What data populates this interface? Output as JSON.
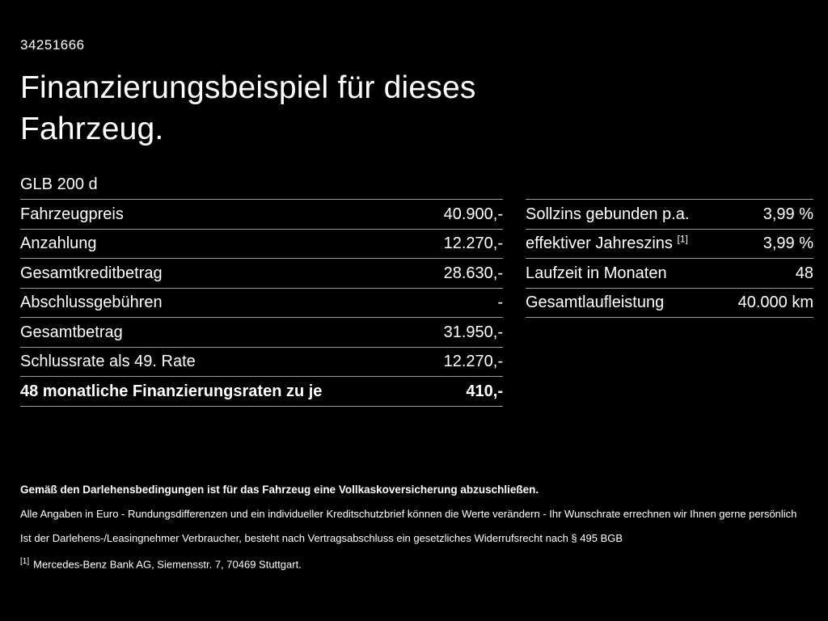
{
  "page": {
    "id_number": "34251666",
    "title": "Finanzierungsbeispiel für dieses Fahrzeug.",
    "model": "GLB 200 d"
  },
  "left_table": {
    "rows": [
      {
        "label": "Fahrzeugpreis",
        "value": "40.900,-"
      },
      {
        "label": "Anzahlung",
        "value": "12.270,-"
      },
      {
        "label": "Gesamtkreditbetrag",
        "value": "28.630,-"
      },
      {
        "label": "Abschlussgebühren",
        "value": "-"
      },
      {
        "label": "Gesamtbetrag",
        "value": "31.950,-"
      },
      {
        "label": "Schlussrate als 49. Rate",
        "value": "12.270,-"
      },
      {
        "label": "48 monatliche Finanzierungsraten zu je",
        "value": "410,-"
      }
    ]
  },
  "right_table": {
    "rows": [
      {
        "label": "Sollzins gebunden p.a.",
        "sup": "",
        "value": "3,99 %"
      },
      {
        "label": "effektiver Jahreszins ",
        "sup": "[1]",
        "value": "3,99 %"
      },
      {
        "label": "Laufzeit in Monaten",
        "sup": "",
        "value": "48"
      },
      {
        "label": "Gesamtlaufleistung",
        "sup": "",
        "value": "40.000 km"
      }
    ]
  },
  "footer": {
    "insurance_note": "Gemäß den Darlehensbedingungen ist für das Fahrzeug eine Vollkaskoversicherung abzuschließen.",
    "disclaimer": "Alle Angaben in Euro - Rundungsdifferenzen und ein individueller Kreditschutzbrief können die Werte verändern - Ihr Wunschrate errechnen wir Ihnen gerne persönlich",
    "legal": "Ist der Darlehens-/Leasingnehmer Verbraucher, besteht nach Vertragsabschluss ein gesetzliches Widerrufsrecht nach § 495 BGB",
    "footnote_marker": "[1]",
    "footnote_text": "Mercedes-Benz Bank AG, Siemensstr. 7, 70469 Stuttgart."
  },
  "colors": {
    "background": "#000000",
    "text": "#ffffff",
    "divider": "#9b9b9b"
  }
}
